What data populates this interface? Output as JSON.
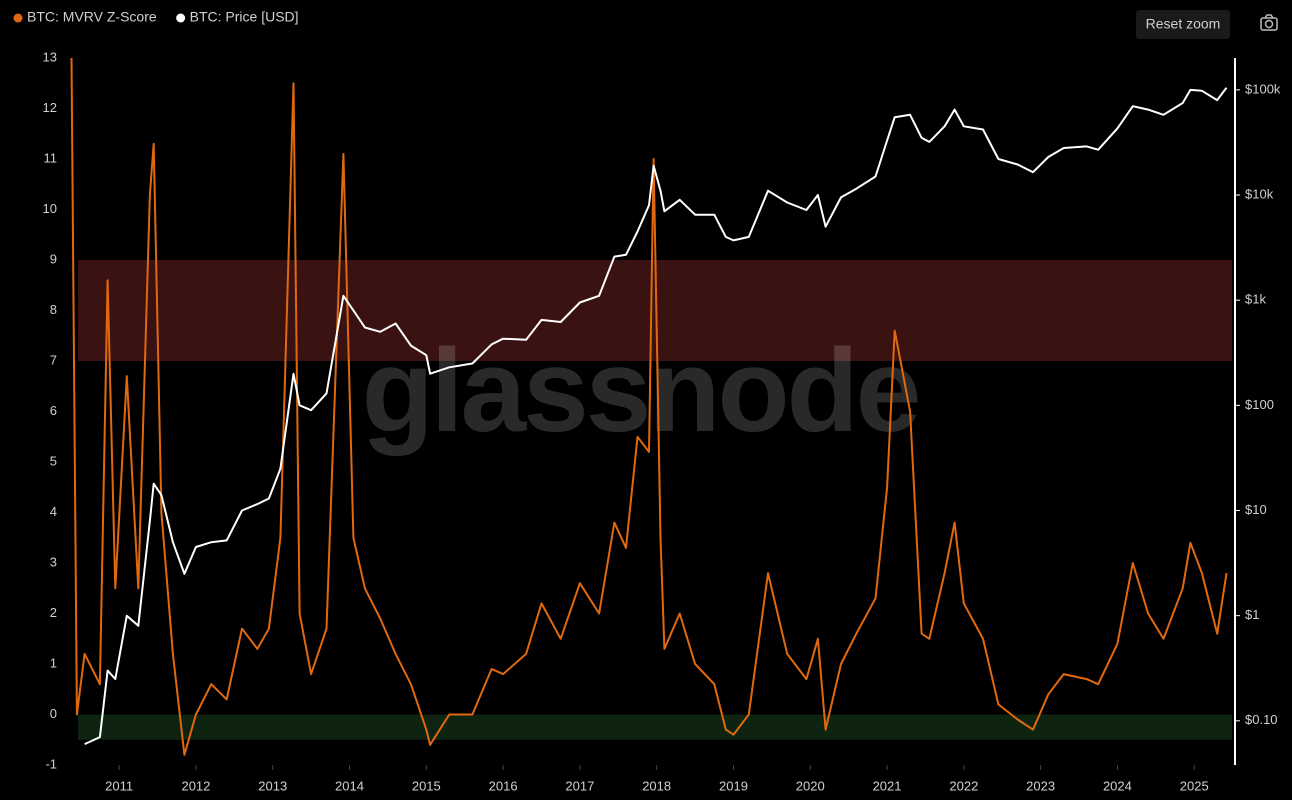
{
  "toolbar": {
    "reset_zoom": "Reset zoom"
  },
  "chart_data": {
    "type": "line",
    "watermark": "glassnode",
    "legend": "top-left",
    "x": [
      2010.38,
      2010.45,
      2010.55,
      2010.75,
      2010.85,
      2010.95,
      2011.1,
      2011.25,
      2011.4,
      2011.45,
      2011.55,
      2011.7,
      2011.85,
      2012.0,
      2012.2,
      2012.4,
      2012.6,
      2012.8,
      2012.95,
      2013.1,
      2013.27,
      2013.35,
      2013.5,
      2013.7,
      2013.92,
      2014.05,
      2014.2,
      2014.4,
      2014.6,
      2014.8,
      2015.0,
      2015.05,
      2015.3,
      2015.6,
      2015.85,
      2016.0,
      2016.3,
      2016.5,
      2016.75,
      2017.0,
      2017.25,
      2017.45,
      2017.6,
      2017.75,
      2017.9,
      2017.96,
      2018.05,
      2018.1,
      2018.3,
      2018.5,
      2018.75,
      2018.9,
      2019.0,
      2019.2,
      2019.45,
      2019.7,
      2019.95,
      2020.1,
      2020.2,
      2020.4,
      2020.6,
      2020.85,
      2021.0,
      2021.1,
      2021.3,
      2021.45,
      2021.55,
      2021.75,
      2021.88,
      2022.0,
      2022.25,
      2022.45,
      2022.7,
      2022.9,
      2023.1,
      2023.3,
      2023.6,
      2023.75,
      2024.0,
      2024.2,
      2024.4,
      2024.6,
      2024.85,
      2024.95,
      2025.1,
      2025.3,
      2025.42
    ],
    "series": [
      {
        "name": "BTC: MVRV Z-Score",
        "color": "#e0690f",
        "values": [
          13,
          0,
          1.2,
          0.6,
          8.6,
          2.5,
          6.7,
          2.5,
          10.3,
          11.3,
          4,
          1.2,
          -0.8,
          0,
          0.6,
          0.3,
          1.7,
          1.3,
          1.7,
          3.5,
          12.5,
          2,
          0.8,
          1.7,
          11.1,
          3.5,
          2.5,
          1.9,
          1.2,
          0.6,
          -0.3,
          -0.6,
          0,
          0,
          0.9,
          0.8,
          1.2,
          2.2,
          1.5,
          2.6,
          2,
          3.8,
          3.3,
          5.5,
          5.2,
          11,
          3.5,
          1.3,
          2,
          1,
          0.6,
          -0.3,
          -0.4,
          0,
          2.8,
          1.2,
          0.7,
          1.5,
          -0.3,
          1,
          1.6,
          2.3,
          4.5,
          7.6,
          6,
          1.6,
          1.5,
          2.8,
          3.8,
          2.2,
          1.5,
          0.2,
          -0.1,
          -0.3,
          0.4,
          0.8,
          0.7,
          0.6,
          1.4,
          3,
          2,
          1.5,
          2.5,
          3.4,
          2.8,
          1.6,
          2.8
        ]
      },
      {
        "name": "BTC: Price [USD]",
        "color": "#ffffff",
        "axis": "y2",
        "values": [
          null,
          null,
          0.06,
          0.07,
          0.3,
          0.25,
          1,
          0.8,
          8,
          18,
          14,
          5,
          2.5,
          4.5,
          5,
          5.2,
          10,
          11.5,
          13,
          25,
          200,
          100,
          90,
          130,
          1100,
          800,
          550,
          500,
          600,
          370,
          300,
          200,
          230,
          250,
          380,
          430,
          420,
          650,
          620,
          950,
          1100,
          2600,
          2700,
          4500,
          8000,
          19000,
          11000,
          7000,
          9000,
          6500,
          6500,
          4000,
          3700,
          4000,
          11000,
          8500,
          7200,
          10000,
          5000,
          9500,
          11500,
          15000,
          33000,
          55000,
          58000,
          35000,
          32000,
          45000,
          65000,
          45000,
          42000,
          22000,
          19500,
          16500,
          23000,
          28000,
          29000,
          27000,
          43000,
          70000,
          65000,
          58000,
          75000,
          100000,
          98000,
          80000,
          105000
        ]
      }
    ],
    "xlim": [
      2010.36,
      2025.44
    ],
    "xticks": [
      2011,
      2012,
      2013,
      2014,
      2015,
      2016,
      2017,
      2018,
      2019,
      2020,
      2021,
      2022,
      2023,
      2024,
      2025
    ],
    "ylim": [
      -1,
      13
    ],
    "yticks": [
      -1,
      0,
      1,
      2,
      3,
      4,
      5,
      6,
      7,
      8,
      9,
      10,
      11,
      12,
      13
    ],
    "y2lim": [
      0.038,
      201000
    ],
    "y2log": true,
    "y2ticks": [
      {
        "value": 0.1,
        "label": "$0.10"
      },
      {
        "value": 1,
        "label": "$1"
      },
      {
        "value": 10,
        "label": "$10"
      },
      {
        "value": 100,
        "label": "$100"
      },
      {
        "value": 1000,
        "label": "$1k"
      },
      {
        "value": 10000,
        "label": "$10k"
      },
      {
        "value": 100000,
        "label": "$100k"
      }
    ],
    "bands": [
      {
        "from": 7,
        "to": 9,
        "color": "#3a1212"
      },
      {
        "from": -0.5,
        "to": 0,
        "color": "#0f2410"
      }
    ]
  }
}
